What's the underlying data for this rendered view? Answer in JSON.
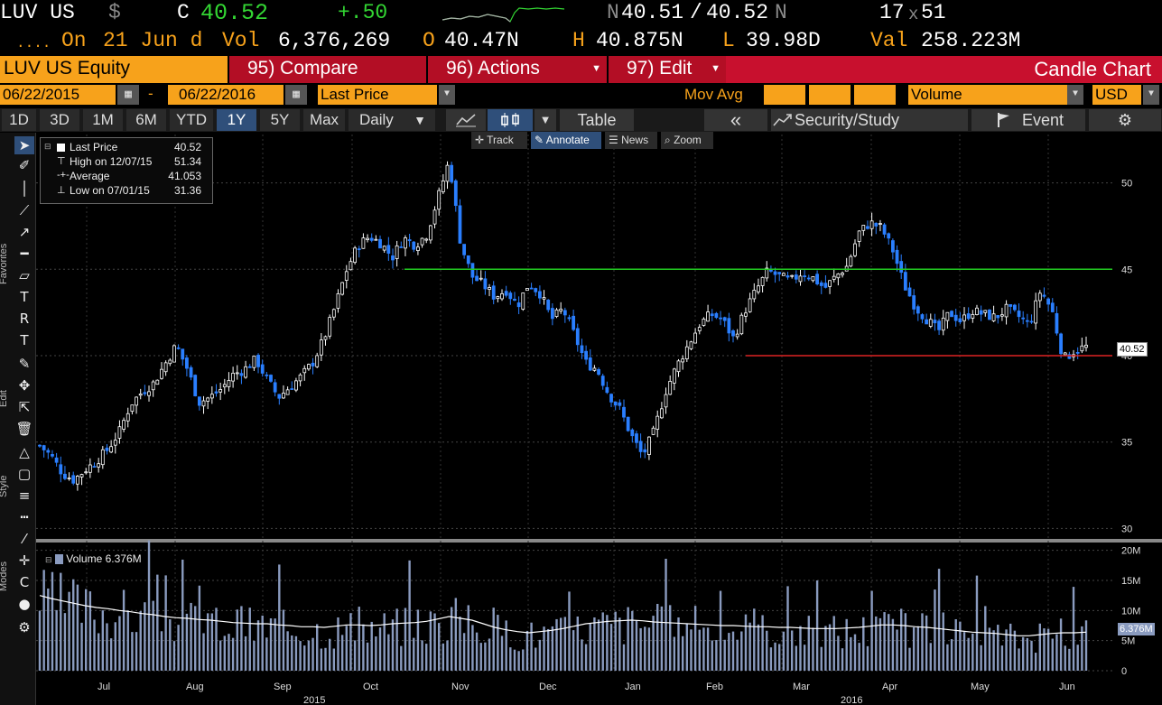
{
  "ticker": {
    "symbol": "LUV US",
    "currency_symbol": "$",
    "close_label": "C",
    "close": "40.52",
    "change": "+.50",
    "bid_ask_prefix": "N",
    "bid": "40.51",
    "separator": "/",
    "ask": "40.52",
    "ask_suffix": "N",
    "size": "17",
    "size_x": "x",
    "size2": "51",
    "dots": "....",
    "on_label": "On",
    "date": "21 Jun d",
    "vol_label": "Vol",
    "vol": "6,376,269",
    "open_label": "O",
    "open": "40.47N",
    "high_label": "H",
    "high": "40.875N",
    "low_label": "L",
    "low": "39.98D",
    "val_label": "Val",
    "val": "258.223M"
  },
  "toolbar": {
    "security": "LUV US Equity",
    "compare": "95) Compare",
    "actions": "96) Actions",
    "edit": "97) Edit",
    "chart_title": "Candle Chart"
  },
  "range": {
    "start": "06/22/2015",
    "dash": "-",
    "end": "06/22/2016",
    "field": "Last Price",
    "mov_avg": "Mov Avg",
    "lower": "Volume",
    "currency": "USD"
  },
  "periods": [
    "1D",
    "3D",
    "1M",
    "6M",
    "YTD",
    "1Y",
    "5Y",
    "Max"
  ],
  "selected_period": "1Y",
  "frequency": "Daily",
  "buttons": {
    "table": "Table",
    "back": "«",
    "security_study": "Security/Study",
    "event": "Event",
    "settings": "⚙"
  },
  "subtools": {
    "track": "Track",
    "annotate": "Annotate",
    "news": "News",
    "zoom": "Zoom"
  },
  "side_labels": {
    "favorites": "Favorites",
    "edit": "Edit",
    "style": "Style",
    "modes": "Modes"
  },
  "legend": {
    "last_label": "Last Price",
    "last": "40.52",
    "high_label": "High on 12/07/15",
    "high": "51.34",
    "avg_label": "Average",
    "avg": "41.053",
    "low_label": "Low on 07/01/15",
    "low": "31.36"
  },
  "volume_legend": {
    "label": "Volume",
    "value": "6.376M"
  },
  "price_tag": "40.52",
  "volume_tag": "6.376M",
  "colors": {
    "amber": "#f7a21b",
    "red_bar": "#c8102e",
    "up_candle": "#ffffff",
    "down_candle": "#2a7fff",
    "resistance": "#22cc22",
    "support": "#dd2222",
    "volume_bar": "#8a9bbf"
  },
  "chart_data": {
    "type": "candlestick",
    "yticks": [
      30,
      35,
      40,
      45,
      50
    ],
    "ylim": [
      29.5,
      52.8
    ],
    "volume_ticks": [
      "0",
      "5M",
      "10M",
      "15M",
      "20M"
    ],
    "volume_ylim": [
      0,
      21000000
    ],
    "months": [
      "Jul",
      "Aug",
      "Sep",
      "Oct",
      "Nov",
      "Dec",
      "Jan",
      "Feb",
      "Mar",
      "Apr",
      "May",
      "Jun"
    ],
    "years": [
      "2015",
      "2016"
    ],
    "horizontal_lines": [
      {
        "value": 45,
        "color": "green"
      },
      {
        "value": 40,
        "color": "red"
      }
    ],
    "price_path": [
      34.8,
      34.2,
      33.2,
      32.8,
      33.4,
      33.9,
      34.6,
      35.6,
      37.2,
      37.9,
      38.4,
      39.5,
      40.6,
      39.2,
      37.3,
      37.6,
      38.1,
      38.9,
      39.2,
      39.8,
      38.6,
      37.6,
      38.2,
      38.8,
      39.6,
      41.0,
      42.9,
      45.0,
      46.4,
      46.9,
      46.5,
      45.7,
      46.8,
      46.4,
      47.0,
      49.1,
      51.3,
      46.5,
      44.6,
      44.1,
      43.4,
      43.8,
      42.9,
      44.2,
      43.6,
      42.1,
      42.7,
      41.2,
      39.6,
      39.2,
      37.8,
      36.9,
      35.4,
      34.2,
      35.6,
      37.9,
      39.4,
      40.6,
      41.8,
      42.4,
      42.1,
      41.0,
      42.6,
      43.8,
      44.9,
      44.6,
      44.3,
      44.8,
      44.5,
      43.9,
      44.6,
      45.2,
      47.1,
      47.7,
      47.4,
      46.1,
      44.1,
      42.8,
      42.1,
      41.4,
      42.5,
      42.0,
      42.6,
      42.4,
      42.2,
      42.7,
      42.3,
      41.8,
      43.8,
      42.6,
      39.8,
      40.3,
      40.52
    ],
    "volume_avg_millions": [
      12.5,
      12.0,
      11.6,
      11.2,
      10.8,
      10.5,
      10.3,
      10.0,
      9.8,
      9.5,
      9.3,
      9.0,
      8.8,
      8.7,
      8.5,
      8.4,
      8.2,
      8.0,
      7.9,
      7.8,
      7.8,
      7.6,
      7.5,
      7.3,
      7.3,
      7.2,
      7.4,
      7.6,
      7.6,
      7.5,
      7.6,
      7.8,
      7.9,
      8.0,
      8.2,
      8.6,
      9.0,
      8.7,
      8.4,
      7.8,
      7.2,
      6.8,
      6.5,
      6.3,
      6.5,
      6.7,
      7.0,
      7.4,
      7.8,
      8.0,
      8.2,
      8.3,
      8.4,
      8.3,
      8.1,
      8.0,
      7.9,
      7.8,
      7.7,
      7.6,
      7.5,
      7.5,
      7.4,
      7.3,
      7.3,
      7.2,
      7.2,
      7.1,
      7.0,
      7.0,
      7.0,
      7.1,
      7.2,
      7.4,
      7.6,
      7.6,
      7.5,
      7.3,
      7.2,
      7.0,
      6.8,
      6.6,
      6.4,
      6.3,
      6.2,
      6.0,
      5.8,
      5.8,
      6.0,
      6.2,
      6.3,
      6.3,
      6.4
    ]
  }
}
